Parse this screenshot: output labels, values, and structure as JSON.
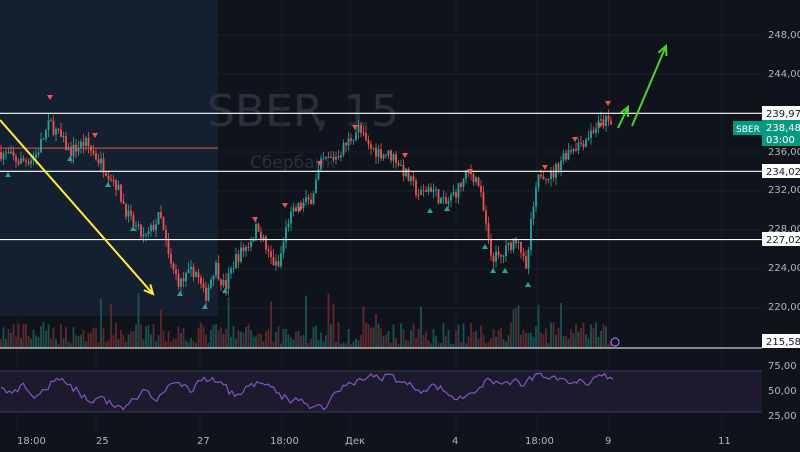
{
  "chart_data": [
    {
      "type": "candlestick",
      "symbol": "SBER",
      "interval": "15",
      "subtitle": "Сбербанк",
      "ylim": [
        215.58,
        250.5
      ],
      "y_ticks": [
        "248,00",
        "244,00",
        "240,00",
        "236,00",
        "232,00",
        "228,00",
        "224,00",
        "220,00"
      ],
      "x_ticks": [
        "18:00",
        "25",
        "27",
        "18:00",
        "Дек",
        "4",
        "18:00",
        "9",
        "11"
      ],
      "level_labels": [
        "239,97",
        "234,02",
        "227,02",
        "215,58"
      ],
      "levels": [
        239.97,
        234.02,
        227.02
      ],
      "bottom_value": 215.58,
      "red_level": 236.4,
      "last_price": 238.48,
      "last_price_label": "238,48",
      "countdown": "03:00",
      "symbol_tag": "SBER",
      "colors": {
        "up": "#26a69a",
        "down": "#ef5350",
        "level": "#ffffff",
        "arrow_down": "#ffeb3b",
        "arrow_up": "#4cd137",
        "rsi": "#7e57c2",
        "tag": "#089981"
      },
      "price_path": [
        [
          0,
          236.0
        ],
        [
          20,
          235.0
        ],
        [
          35,
          235.5
        ],
        [
          50,
          239.0
        ],
        [
          60,
          237.5
        ],
        [
          70,
          236.0
        ],
        [
          85,
          237.0
        ],
        [
          100,
          235.0
        ],
        [
          115,
          233.0
        ],
        [
          130,
          229.0
        ],
        [
          145,
          227.0
        ],
        [
          160,
          229.5
        ],
        [
          170,
          224.5
        ],
        [
          180,
          222.5
        ],
        [
          195,
          224.0
        ],
        [
          205,
          221.0
        ],
        [
          215,
          224.5
        ],
        [
          225,
          222.0
        ],
        [
          235,
          225.0
        ],
        [
          248,
          226.5
        ],
        [
          258,
          228.5
        ],
        [
          268,
          225.5
        ],
        [
          278,
          224.0
        ],
        [
          288,
          229.0
        ],
        [
          300,
          230.5
        ],
        [
          310,
          231.0
        ],
        [
          322,
          235.0
        ],
        [
          335,
          235.5
        ],
        [
          348,
          237.0
        ],
        [
          358,
          238.5
        ],
        [
          368,
          236.5
        ],
        [
          380,
          236.0
        ],
        [
          395,
          235.5
        ],
        [
          410,
          233.0
        ],
        [
          420,
          231.5
        ],
        [
          430,
          232.5
        ],
        [
          445,
          230.5
        ],
        [
          460,
          232.5
        ],
        [
          470,
          234.0
        ],
        [
          478,
          233.0
        ],
        [
          485,
          229.0
        ],
        [
          490,
          225.5
        ],
        [
          500,
          225.0
        ],
        [
          510,
          226.5
        ],
        [
          518,
          227.5
        ],
        [
          526,
          223.5
        ],
        [
          532,
          229.5
        ],
        [
          540,
          234.0
        ],
        [
          552,
          233.5
        ],
        [
          562,
          235.5
        ],
        [
          572,
          236.5
        ],
        [
          582,
          237.0
        ],
        [
          595,
          238.5
        ],
        [
          605,
          239.2
        ],
        [
          615,
          238.4
        ]
      ],
      "rsi": {
        "ylim": [
          20,
          80
        ],
        "ticks": [
          "75,00",
          "50,00",
          "25,00"
        ],
        "values": [
          55,
          48,
          60,
          42,
          52,
          66,
          58,
          49,
          37,
          44,
          33,
          28,
          41,
          52,
          38,
          57,
          61,
          49,
          63,
          67,
          58,
          44,
          56,
          62,
          59,
          48,
          36,
          41,
          31,
          28,
          49,
          57,
          64,
          68,
          66,
          71,
          61,
          56,
          51,
          58,
          49,
          40,
          47,
          55,
          64,
          59,
          63,
          57,
          71,
          67,
          64,
          60,
          65,
          61,
          69,
          65
        ]
      }
    }
  ]
}
